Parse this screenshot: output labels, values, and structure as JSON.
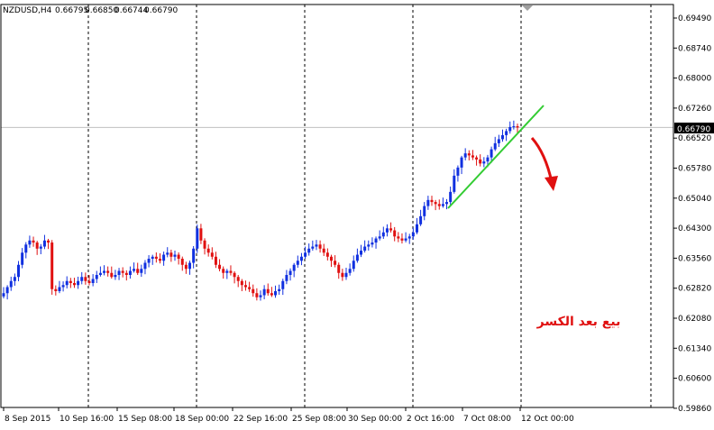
{
  "chart_data": {
    "type": "candlestick",
    "title": "NZDUSD,H4",
    "ohlc": {
      "open": "0.66795",
      "high": "0.66850",
      "low": "0.66744",
      "close": "0.66790"
    },
    "current_price": "0.66790",
    "y_ticks": [
      "0.69490",
      "0.68740",
      "0.68000",
      "0.67260",
      "0.66520",
      "0.65780",
      "0.65040",
      "0.64300",
      "0.63560",
      "0.62820",
      "0.62080",
      "0.61340",
      "0.60600",
      "0.59860"
    ],
    "ylim": [
      0.5961,
      0.6997
    ],
    "x_ticks": [
      "8 Sep 2015",
      "10 Sep 16:00",
      "15 Sep 08:00",
      "18 Sep 00:00",
      "22 Sep 16:00",
      "25 Sep 08:00",
      "30 Sep 00:00",
      "2 Oct 16:00",
      "7 Oct 08:00",
      "12 Oct 00:00"
    ],
    "annotation": "بيع بعد الكسر",
    "colors": {
      "bull": "#1030e0",
      "bear": "#e01010",
      "trendline": "#33cc33",
      "arrow": "#e01010",
      "grid": "#000000",
      "price_line": "#c0c0c0"
    },
    "grid": true,
    "close_path": [
      0.627,
      0.6285,
      0.63,
      0.631,
      0.634,
      0.637,
      0.639,
      0.64,
      0.6395,
      0.638,
      0.6385,
      0.64,
      0.6395,
      0.628,
      0.6275,
      0.6285,
      0.629,
      0.63,
      0.6295,
      0.629,
      0.63,
      0.631,
      0.63,
      0.6295,
      0.6305,
      0.6315,
      0.632,
      0.6325,
      0.632,
      0.631,
      0.6315,
      0.6325,
      0.632,
      0.6315,
      0.6325,
      0.633,
      0.632,
      0.633,
      0.6345,
      0.6355,
      0.636,
      0.6355,
      0.635,
      0.6365,
      0.637,
      0.636,
      0.6365,
      0.6355,
      0.634,
      0.633,
      0.6345,
      0.638,
      0.643,
      0.64,
      0.638,
      0.637,
      0.636,
      0.634,
      0.633,
      0.632,
      0.6325,
      0.632,
      0.631,
      0.63,
      0.629,
      0.6285,
      0.628,
      0.627,
      0.626,
      0.6265,
      0.628,
      0.627,
      0.6265,
      0.6275,
      0.628,
      0.63,
      0.6315,
      0.6325,
      0.634,
      0.635,
      0.636,
      0.637,
      0.638,
      0.6385,
      0.639,
      0.638,
      0.637,
      0.636,
      0.635,
      0.634,
      0.632,
      0.631,
      0.632,
      0.633,
      0.635,
      0.6365,
      0.6375,
      0.6385,
      0.639,
      0.6395,
      0.6405,
      0.641,
      0.642,
      0.643,
      0.6425,
      0.641,
      0.6405,
      0.64,
      0.6405,
      0.641,
      0.642,
      0.644,
      0.646,
      0.6485,
      0.65,
      0.6495,
      0.649,
      0.6485,
      0.649,
      0.6495,
      0.652,
      0.656,
      0.658,
      0.6605,
      0.6615,
      0.661,
      0.6605,
      0.66,
      0.659,
      0.6595,
      0.6605,
      0.6625,
      0.664,
      0.665,
      0.666,
      0.667,
      0.668,
      0.6682,
      0.6679
    ]
  }
}
